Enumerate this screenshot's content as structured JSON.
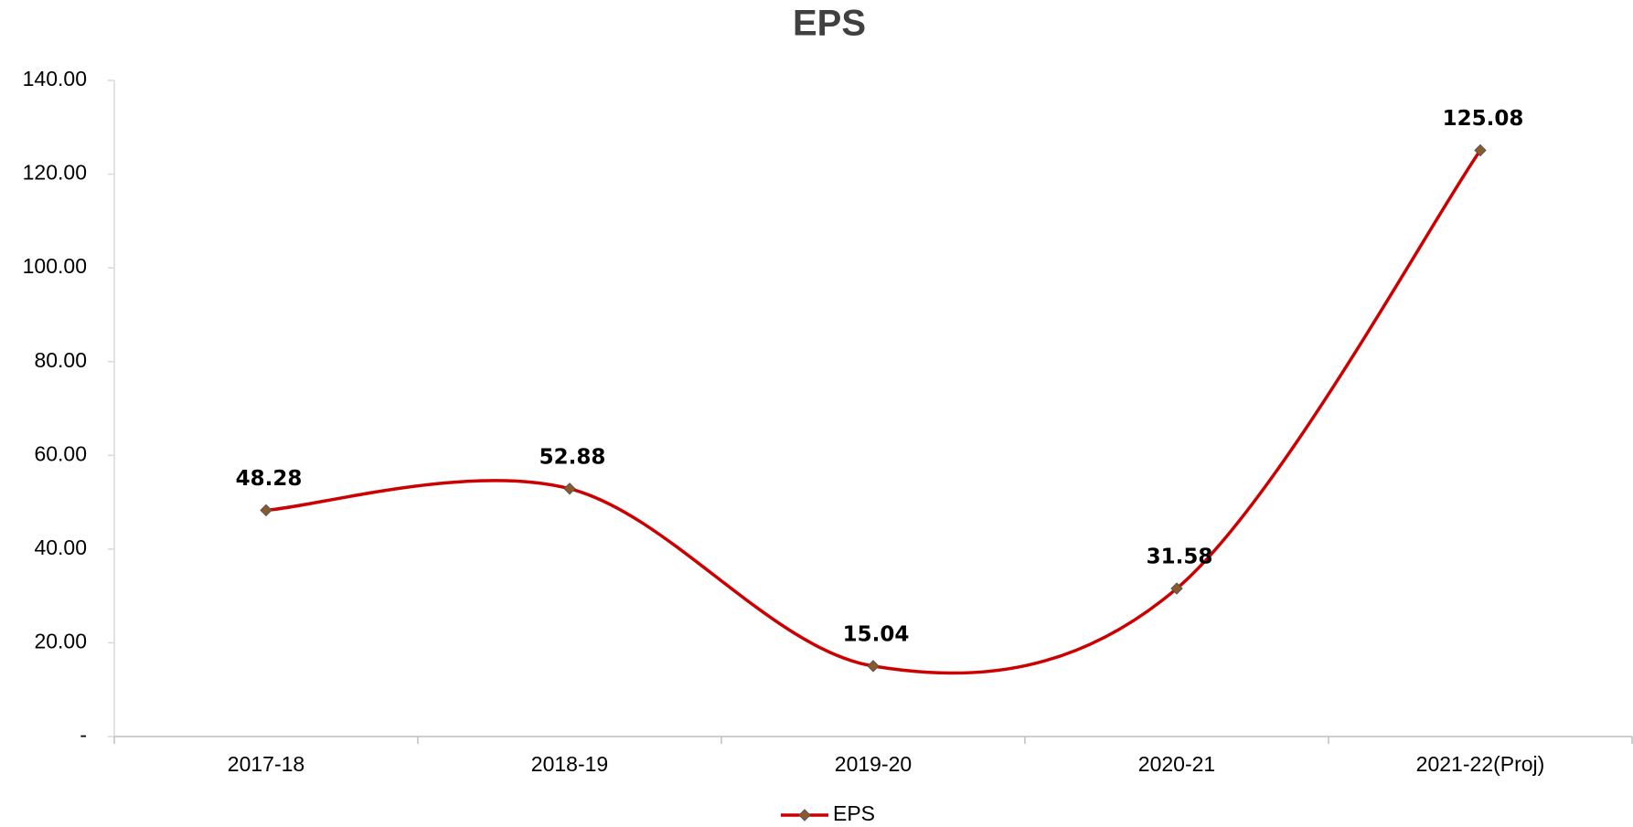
{
  "chart_data": {
    "type": "line",
    "title": "EPS",
    "categories": [
      "2017-18",
      "2018-19",
      "2019-20",
      "2020-21",
      "2021-22(Proj)"
    ],
    "series": [
      {
        "name": "EPS",
        "color": "#cc0000",
        "values": [
          48.28,
          52.88,
          15.04,
          31.58,
          125.08
        ]
      }
    ],
    "ylim": [
      0,
      140
    ],
    "yticks": [
      {
        "value": 0,
        "label": "-"
      },
      {
        "value": 20,
        "label": "20.00"
      },
      {
        "value": 40,
        "label": "40.00"
      },
      {
        "value": 60,
        "label": "60.00"
      },
      {
        "value": 80,
        "label": "80.00"
      },
      {
        "value": 100,
        "label": "100.00"
      },
      {
        "value": 120,
        "label": "120.00"
      },
      {
        "value": 140,
        "label": "140.00"
      }
    ],
    "legend": "bottom",
    "smooth": true
  }
}
